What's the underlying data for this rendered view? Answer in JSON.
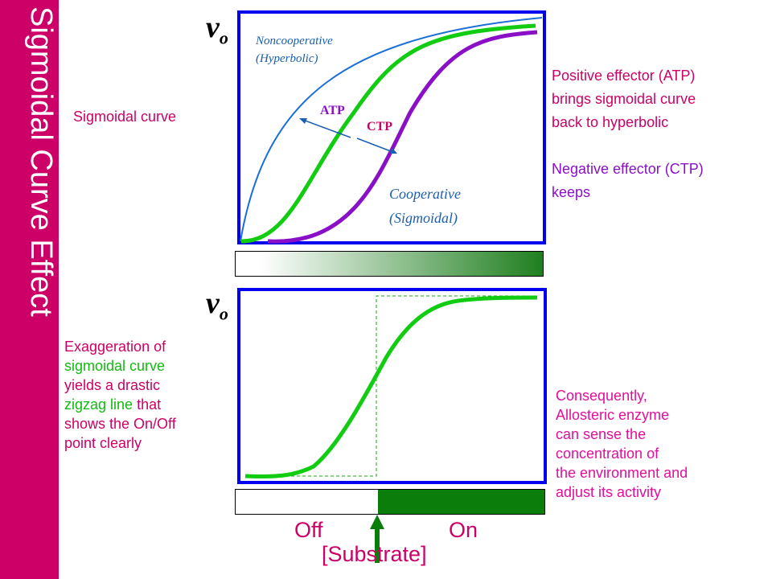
{
  "title": "Sigmoidal Curve Effect",
  "top_panel": {
    "y_axis_label": "v",
    "y_axis_subscript": "o",
    "noncoop_label_line1": "Noncooperative",
    "noncoop_label_line2": "(Hyperbolic)",
    "coop_label_line1": "Cooperative",
    "coop_label_line2": "(Sigmoidal)",
    "atp_label": "ATP",
    "ctp_label": "CTP"
  },
  "bottom_panel": {
    "y_axis_label": "v",
    "y_axis_subscript": "o",
    "off_label": "Off",
    "on_label": "On",
    "x_axis_label": "[Substrate]"
  },
  "left_text": {
    "sigmoidal_curve": "Sigmoidal curve",
    "exag_line1": "Exaggeration of",
    "exag_line2": "sigmoidal curve",
    "exag_line3": "yields a drastic",
    "exag_line4a": "zigzag line",
    "exag_line4b": " that",
    "exag_line5": "shows the On/Off",
    "exag_line6": "point clearly"
  },
  "right_text": {
    "pos_line1": "Positive effector (ATP)",
    "pos_line2": "brings sigmoidal curve",
    "pos_line3": "back to hyperbolic",
    "neg_line1": "Negative effector (CTP)",
    "neg_line2": "keeps",
    "cons_line1": "Consequently,",
    "cons_line2": "Allosteric enzyme",
    "cons_line3": "can sense the",
    "cons_line4": "concentration of",
    "cons_line5": "the environment and",
    "cons_line6": "adjust its activity"
  },
  "colors": {
    "sidebar": "#cc0066",
    "frame": "#0000ee",
    "hyperbolic": "#1a6fd6",
    "sigmoidal": "#11cc11",
    "ctp_curve": "#8a10c8",
    "atp_text": "#8a10c8",
    "ctp_text": "#cc0066",
    "magenta_text": "#e0109a",
    "green_text": "#11bb11",
    "arrow": "#0a7d0a"
  },
  "icons": [
    "up-arrow-icon"
  ]
}
